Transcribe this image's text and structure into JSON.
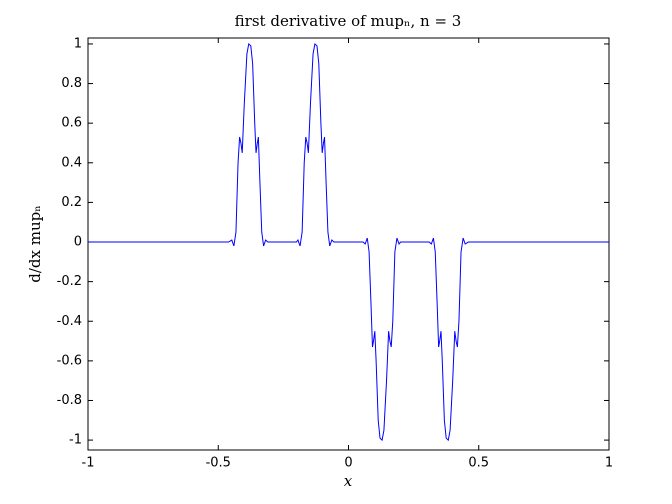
{
  "chart_data": {
    "type": "line",
    "title": "first derivative of mupₙ, n = 3",
    "x_label": "x",
    "y_label": "d/dx mupₙ",
    "x": [
      -1,
      -0.46,
      -0.448,
      -0.44,
      -0.432,
      -0.424,
      -0.418,
      -0.413,
      -0.408,
      -0.4,
      -0.39,
      -0.383,
      -0.375,
      -0.368,
      -0.36,
      -0.355,
      -0.35,
      -0.346,
      -0.34,
      -0.333,
      -0.326,
      -0.318,
      -0.31,
      -0.2,
      -0.194,
      -0.186,
      -0.178,
      -0.17,
      -0.164,
      -0.159,
      -0.154,
      -0.146,
      -0.136,
      -0.129,
      -0.121,
      -0.114,
      -0.106,
      -0.101,
      -0.096,
      -0.092,
      -0.086,
      -0.079,
      -0.072,
      -0.064,
      -0.056,
      0,
      0.056,
      0.064,
      0.072,
      0.079,
      0.086,
      0.092,
      0.096,
      0.101,
      0.106,
      0.114,
      0.121,
      0.129,
      0.136,
      0.146,
      0.154,
      0.159,
      0.164,
      0.17,
      0.178,
      0.186,
      0.194,
      0.2,
      0.31,
      0.318,
      0.326,
      0.333,
      0.34,
      0.346,
      0.35,
      0.355,
      0.36,
      0.368,
      0.375,
      0.383,
      0.39,
      0.4,
      0.408,
      0.413,
      0.418,
      0.424,
      0.432,
      0.44,
      0.448,
      0.46,
      1
    ],
    "series": [
      {
        "color": "#0000ff",
        "values": [
          0,
          0,
          0.01,
          -0.02,
          0.05,
          0.4,
          0.53,
          0.5,
          0.45,
          0.7,
          0.95,
          1,
          0.99,
          0.9,
          0.6,
          0.45,
          0.5,
          0.53,
          0.3,
          0.05,
          -0.02,
          0.01,
          0,
          0,
          0.01,
          -0.02,
          0.05,
          0.4,
          0.53,
          0.5,
          0.45,
          0.7,
          0.95,
          1,
          0.99,
          0.9,
          0.6,
          0.45,
          0.5,
          0.53,
          0.3,
          0.05,
          -0.02,
          0.01,
          0,
          0,
          0,
          -0.01,
          0.02,
          -0.05,
          -0.3,
          -0.53,
          -0.5,
          -0.45,
          -0.6,
          -0.9,
          -0.99,
          -1,
          -0.95,
          -0.7,
          -0.45,
          -0.5,
          -0.53,
          -0.4,
          -0.05,
          0.02,
          -0.01,
          0,
          0,
          -0.01,
          0.02,
          -0.05,
          -0.3,
          -0.53,
          -0.5,
          -0.45,
          -0.6,
          -0.9,
          -0.99,
          -1,
          -0.95,
          -0.7,
          -0.45,
          -0.5,
          -0.53,
          -0.4,
          -0.05,
          0.02,
          -0.01,
          0,
          0
        ]
      }
    ],
    "xlim": [
      -1,
      1
    ],
    "xticks": [
      -1,
      -0.5,
      0,
      0.5,
      1
    ],
    "ylim": [
      -1.05,
      1.03
    ],
    "yticks": [
      -1,
      -0.8,
      -0.6,
      -0.4,
      -0.2,
      0,
      0.2,
      0.4,
      0.6,
      0.8,
      1
    ]
  }
}
